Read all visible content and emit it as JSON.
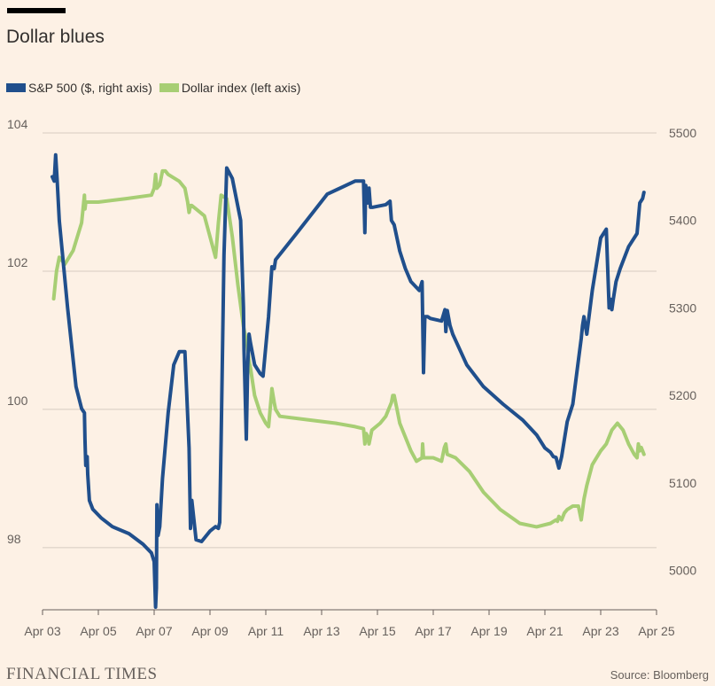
{
  "title": "Dollar blues",
  "footer": {
    "brand": "FINANCIAL TIMES",
    "source": "Source: Bloomberg"
  },
  "colors": {
    "sp500": "#204f8c",
    "dollar": "#a7ce74",
    "grid": "#d6cbc1",
    "background": "#fdf1e5"
  },
  "chart_data": {
    "type": "line",
    "title": "Dollar blues",
    "x_ticks": [
      "Apr 03",
      "Apr 05",
      "Apr 07",
      "Apr 09",
      "Apr 11",
      "Apr 13",
      "Apr 15",
      "Apr 17",
      "Apr 19",
      "Apr 21",
      "Apr 23",
      "Apr 25"
    ],
    "xlim": [
      3,
      25
    ],
    "left_axis": {
      "ticks": [
        "104",
        "102",
        "100",
        "98"
      ],
      "ylim": [
        97.1,
        104
      ]
    },
    "right_axis": {
      "ticks": [
        "5500",
        "5400",
        "5300",
        "5200",
        "5100",
        "5000"
      ],
      "ylim": [
        4955,
        5500
      ]
    },
    "grid": true,
    "legend_position": "top-left",
    "series": [
      {
        "name": "S&P 500 ($, right axis)",
        "axis": "right",
        "x": [
          3.35,
          3.42,
          3.47,
          3.52,
          3.6,
          3.9,
          4.2,
          4.4,
          4.5,
          4.52,
          4.55,
          4.6,
          4.62,
          4.68,
          4.8,
          5.1,
          5.5,
          6.1,
          6.6,
          6.9,
          7.0,
          7.05,
          7.08,
          7.1,
          7.14,
          7.2,
          7.3,
          7.5,
          7.7,
          7.9,
          8.1,
          8.25,
          8.3,
          8.35,
          8.5,
          8.7,
          9.0,
          9.2,
          9.3,
          9.35,
          9.4,
          9.5,
          9.6,
          9.8,
          10.1,
          10.2,
          10.22,
          10.3,
          10.35,
          10.4,
          10.45,
          10.6,
          10.8,
          10.9,
          11.1,
          11.22,
          11.3,
          11.35,
          11.6,
          12.1,
          13.2,
          14.2,
          14.5,
          14.55,
          14.58,
          14.65,
          14.7,
          14.75,
          14.82,
          15.3,
          15.45,
          15.5,
          15.6,
          15.8,
          16.0,
          16.2,
          16.5,
          16.6,
          16.65,
          16.7,
          16.8,
          16.9,
          17.3,
          17.42,
          17.45,
          17.5,
          17.6,
          17.7,
          18.2,
          18.8,
          19.5,
          20.2,
          20.7,
          21.0,
          21.2,
          21.3,
          21.4,
          21.5,
          21.6,
          21.8,
          22.0,
          22.2,
          22.3,
          22.35,
          22.4,
          22.5,
          22.7,
          23.0,
          23.2,
          23.3,
          23.35,
          23.4,
          23.45,
          23.55,
          23.7,
          24.0,
          24.3,
          24.4,
          24.5,
          24.55
        ],
        "y": [
          5450,
          5445,
          5475,
          5448,
          5400,
          5300,
          5210,
          5185,
          5180,
          5150,
          5120,
          5130,
          5110,
          5080,
          5070,
          5060,
          5050,
          5042,
          5030,
          5020,
          5010,
          4958,
          4980,
          5075,
          5040,
          5050,
          5105,
          5180,
          5235,
          5250,
          5250,
          5140,
          5048,
          5080,
          5035,
          5033,
          5045,
          5050,
          5048,
          5055,
          5150,
          5360,
          5460,
          5448,
          5400,
          5300,
          5253,
          5150,
          5232,
          5270,
          5260,
          5235,
          5225,
          5222,
          5290,
          5347,
          5345,
          5355,
          5365,
          5385,
          5430,
          5445,
          5445,
          5386,
          5440,
          5420,
          5437,
          5415,
          5415,
          5418,
          5422,
          5400,
          5395,
          5365,
          5345,
          5330,
          5320,
          5330,
          5226,
          5290,
          5290,
          5288,
          5285,
          5298,
          5273,
          5297,
          5280,
          5270,
          5235,
          5210,
          5190,
          5172,
          5155,
          5140,
          5135,
          5130,
          5129,
          5117,
          5130,
          5170,
          5190,
          5240,
          5265,
          5280,
          5290,
          5270,
          5320,
          5380,
          5390,
          5300,
          5310,
          5298,
          5310,
          5330,
          5345,
          5370,
          5385,
          5420,
          5425,
          5432
        ]
      },
      {
        "name": "Dollar index (left axis)",
        "axis": "left",
        "x": [
          3.4,
          3.5,
          3.6,
          3.8,
          4.1,
          4.4,
          4.5,
          4.52,
          4.55,
          4.6,
          5.0,
          6.0,
          6.9,
          7.0,
          7.05,
          7.1,
          7.2,
          7.3,
          7.4,
          7.5,
          7.7,
          7.9,
          8.1,
          8.2,
          8.25,
          8.3,
          8.35,
          8.5,
          8.8,
          9.2,
          9.3,
          9.4,
          9.6,
          9.8,
          10.0,
          10.2,
          10.35,
          10.4,
          10.45,
          10.6,
          10.8,
          11.0,
          11.1,
          11.2,
          11.22,
          11.3,
          11.35,
          11.5,
          12.5,
          13.5,
          14.2,
          14.5,
          14.55,
          14.6,
          14.65,
          14.7,
          14.8,
          15.1,
          15.3,
          15.5,
          15.55,
          15.6,
          15.7,
          15.8,
          16.0,
          16.2,
          16.4,
          16.6,
          16.62,
          16.65,
          16.7,
          17.0,
          17.3,
          17.4,
          17.45,
          17.5,
          17.8,
          18.3,
          18.8,
          19.4,
          20.1,
          20.7,
          21.2,
          21.4,
          21.45,
          21.5,
          21.6,
          21.7,
          21.8,
          22.0,
          22.2,
          22.3,
          22.4,
          22.5,
          22.7,
          23.0,
          23.1,
          23.2,
          23.4,
          23.6,
          23.8,
          24.0,
          24.2,
          24.3,
          24.35,
          24.4,
          24.45,
          24.5,
          24.55
        ],
        "y": [
          101.6,
          102.0,
          102.2,
          102.1,
          102.3,
          102.7,
          103.1,
          102.9,
          103.0,
          103.0,
          103.0,
          103.05,
          103.1,
          103.2,
          103.4,
          103.2,
          103.25,
          103.45,
          103.45,
          103.4,
          103.35,
          103.3,
          103.2,
          103.0,
          102.85,
          102.95,
          102.95,
          102.9,
          102.8,
          102.2,
          102.7,
          103.1,
          103.05,
          102.5,
          101.8,
          101.2,
          100.9,
          100.7,
          100.6,
          100.2,
          99.95,
          99.8,
          99.75,
          100.2,
          100.3,
          100.1,
          100.0,
          99.9,
          99.85,
          99.8,
          99.75,
          99.72,
          99.5,
          99.65,
          99.6,
          99.5,
          99.7,
          99.8,
          99.9,
          100.1,
          100.2,
          100.2,
          100.0,
          99.8,
          99.6,
          99.4,
          99.25,
          99.3,
          99.5,
          99.3,
          99.3,
          99.3,
          99.25,
          99.45,
          99.5,
          99.35,
          99.3,
          99.1,
          98.8,
          98.55,
          98.35,
          98.3,
          98.35,
          98.4,
          98.38,
          98.45,
          98.4,
          98.5,
          98.55,
          98.6,
          98.6,
          98.4,
          98.7,
          98.9,
          99.2,
          99.4,
          99.45,
          99.5,
          99.7,
          99.8,
          99.7,
          99.5,
          99.35,
          99.3,
          99.5,
          99.4,
          99.45,
          99.4,
          99.35
        ]
      }
    ]
  }
}
